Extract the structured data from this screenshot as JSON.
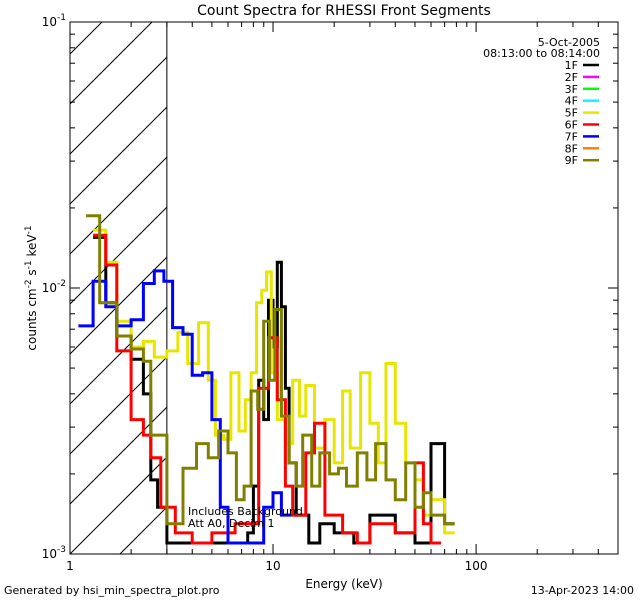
{
  "chart_data": {
    "type": "line",
    "title": "Count Spectra for RHESSI Front Segments",
    "xlabel": "Energy (keV)",
    "ylabel": "counts cm",
    "ylabel_sup1": "-2",
    "ylabel_mid": " s",
    "ylabel_sup2": "-1",
    "ylabel_mid2": " keV",
    "ylabel_sup3": "-1",
    "x_scale": "log",
    "y_scale": "log",
    "xlim": [
      1,
      500
    ],
    "ylim": [
      0.001,
      0.1
    ],
    "x_ticks": [
      {
        "value": 1,
        "label": "1"
      },
      {
        "value": 10,
        "label": "10"
      },
      {
        "value": 100,
        "label": "100"
      }
    ],
    "y_ticks": [
      {
        "value": 0.001,
        "base": "10",
        "exp": "-3"
      },
      {
        "value": 0.01,
        "base": "10",
        "exp": "-2"
      },
      {
        "value": 0.1,
        "base": "10",
        "exp": "-1"
      }
    ],
    "date": "5-Oct-2005",
    "time_range": "08:13:00 to 08:14:00",
    "excluded_region_max": 3,
    "note_line1": "Includes Background",
    "note_line2": "Att A0, Decim 1",
    "series": [
      {
        "name": "1F",
        "color": "#000000",
        "x": [
          1.3,
          1.5,
          1.7,
          2.0,
          2.3,
          2.5,
          2.7,
          3.0,
          7.5,
          8.0,
          8.5,
          9.0,
          9.5,
          10.0,
          10.5,
          11.0,
          11.5,
          12.0,
          13.0,
          15.0,
          17.0,
          20.0,
          25.0,
          30.0,
          40.0,
          50.0,
          60.0,
          70.0
        ],
        "y": [
          0.0155,
          0.0088,
          0.0066,
          0.0054,
          0.004,
          0.0019,
          0.0015,
          0.0011,
          0.0012,
          0.0018,
          0.0045,
          0.0032,
          0.009,
          0.006,
          0.0125,
          0.0085,
          0.0042,
          0.0022,
          0.0014,
          0.0011,
          0.0013,
          0.0012,
          0.0011,
          0.0014,
          0.0012,
          0.0011,
          0.0026,
          0.0013
        ]
      },
      {
        "name": "2F",
        "color": "#ff00ff",
        "x": [],
        "y": []
      },
      {
        "name": "3F",
        "color": "#00ff00",
        "x": [],
        "y": []
      },
      {
        "name": "4F",
        "color": "#00ffff",
        "x": [],
        "y": []
      },
      {
        "name": "5F",
        "color": "#e6e600",
        "x": [
          1.3,
          1.5,
          1.7,
          2.0,
          2.3,
          2.6,
          3.0,
          3.4,
          3.8,
          4.3,
          4.8,
          5.2,
          5.7,
          6.2,
          6.8,
          7.3,
          7.8,
          8.3,
          8.8,
          9.3,
          9.8,
          10.5,
          11.5,
          12.5,
          13.5,
          14.5,
          16.0,
          18.0,
          20.0,
          22.0,
          24.0,
          27.0,
          30.0,
          33.0,
          36.0,
          40.0,
          45.0,
          50.0,
          55.0,
          60.0,
          70.0
        ],
        "y": [
          0.0165,
          0.0125,
          0.0075,
          0.006,
          0.0063,
          0.0055,
          0.0058,
          0.0068,
          0.0052,
          0.0074,
          0.0045,
          0.0028,
          0.0027,
          0.0048,
          0.0029,
          0.0038,
          0.0048,
          0.0088,
          0.0098,
          0.0115,
          0.0048,
          0.0032,
          0.0026,
          0.0045,
          0.0033,
          0.0043,
          0.0025,
          0.0032,
          0.0022,
          0.0041,
          0.0025,
          0.0048,
          0.0031,
          0.0022,
          0.0052,
          0.0031,
          0.0022,
          0.0019,
          0.0014,
          0.0016,
          0.0012
        ]
      },
      {
        "name": "6F",
        "color": "#ff0000",
        "x": [
          1.3,
          1.5,
          1.7,
          2.0,
          2.3,
          2.5,
          2.8,
          3.3,
          4.0,
          5.0,
          6.5,
          8.5,
          9.5,
          10.5,
          11.5,
          12.5,
          14.5,
          16.0,
          18.0,
          22.0,
          26.0,
          30.0,
          40.0,
          50.0,
          55.0,
          60.0
        ],
        "y": [
          0.0158,
          0.0122,
          0.0058,
          0.0032,
          0.0028,
          0.0023,
          0.0015,
          0.0012,
          0.0011,
          0.0012,
          0.0013,
          0.0042,
          0.0065,
          0.0038,
          0.0018,
          0.0014,
          0.0024,
          0.0031,
          0.0014,
          0.0012,
          0.0011,
          0.0013,
          0.0012,
          0.0022,
          0.0013,
          0.0011
        ]
      },
      {
        "name": "7F",
        "color": "#0000ff",
        "x": [
          1.1,
          1.3,
          1.5,
          1.7,
          2.0,
          2.3,
          2.6,
          2.9,
          3.2,
          3.6,
          4.0,
          4.5,
          5.0,
          5.5,
          6.0,
          9.0,
          10.0,
          11.0
        ],
        "y": [
          0.0072,
          0.0106,
          0.0085,
          0.0072,
          0.0076,
          0.0104,
          0.0116,
          0.0106,
          0.0071,
          0.0067,
          0.0047,
          0.0048,
          0.0032,
          0.0015,
          0.0011,
          0.0015,
          0.0017,
          0.0014
        ]
      },
      {
        "name": "8F",
        "color": "#ff8000",
        "x": [],
        "y": []
      },
      {
        "name": "9F",
        "color": "#808000",
        "x": [
          1.2,
          1.4,
          1.7,
          2.0,
          2.3,
          2.5,
          3.0,
          3.6,
          4.2,
          4.8,
          5.4,
          6.0,
          6.6,
          7.2,
          7.8,
          8.4,
          9.0,
          9.6,
          10.2,
          11.0,
          12.0,
          13.0,
          14.0,
          15.5,
          17.0,
          19.0,
          21.0,
          23.0,
          26.0,
          29.0,
          32.0,
          36.0,
          40.0,
          45.0,
          50.0,
          55.0,
          60.0,
          70.0
        ],
        "y": [
          0.0187,
          0.0088,
          0.0066,
          0.0059,
          0.0053,
          0.0028,
          0.0013,
          0.0021,
          0.0026,
          0.0023,
          0.0029,
          0.0024,
          0.0016,
          0.0018,
          0.0041,
          0.0035,
          0.0075,
          0.0045,
          0.0083,
          0.0033,
          0.0022,
          0.0018,
          0.0028,
          0.0018,
          0.0024,
          0.002,
          0.0021,
          0.0018,
          0.0024,
          0.0019,
          0.0026,
          0.0019,
          0.0016,
          0.0022,
          0.0015,
          0.0017,
          0.0014,
          0.0013
        ]
      }
    ]
  },
  "footer": {
    "generator": "Generated by hsi_min_spectra_plot.pro",
    "timestamp": "13-Apr-2023 14:00"
  }
}
